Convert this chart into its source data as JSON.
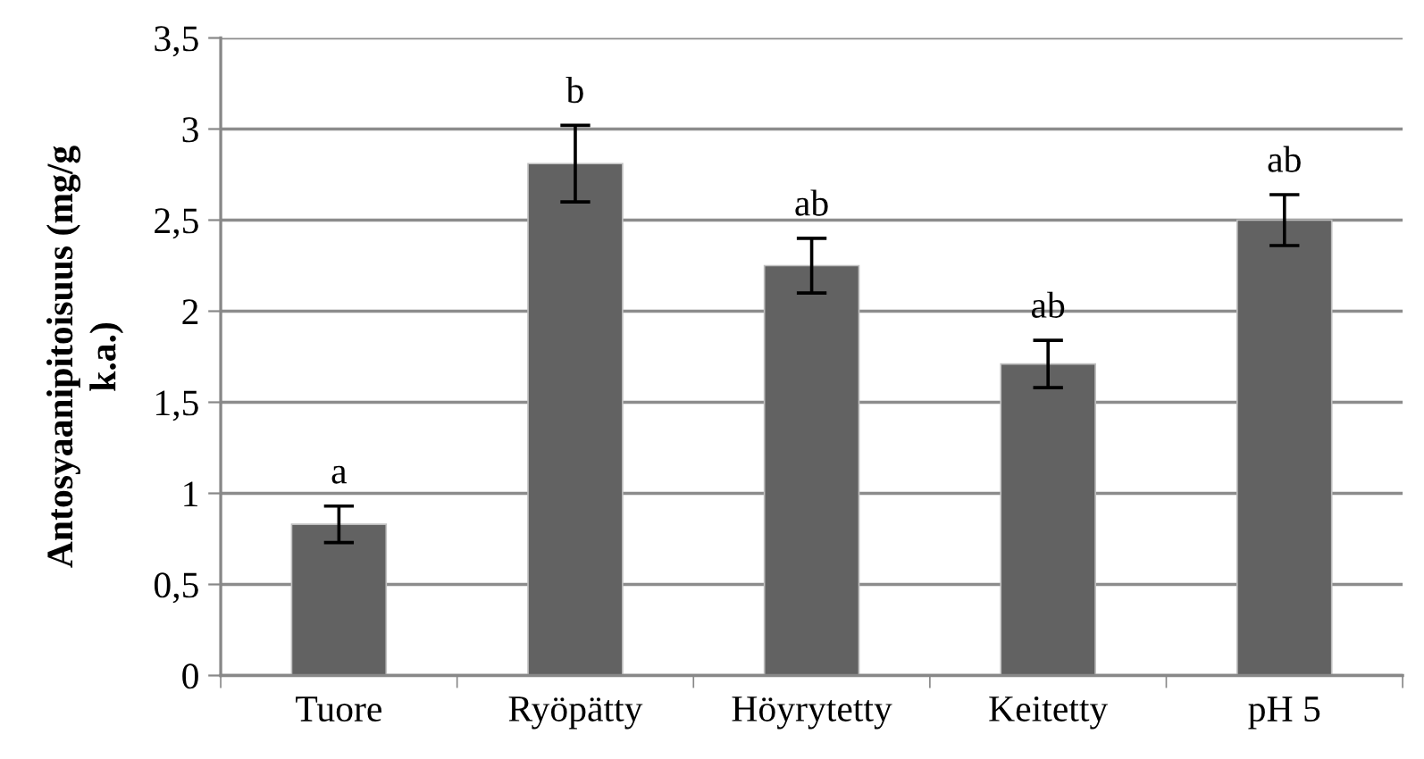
{
  "chart_data": {
    "type": "bar",
    "ylabel": "Antosyaanipitoisuus (mg/g\nk.a.)",
    "categories": [
      "Tuore",
      "Ryöpätty",
      "Höyrytetty",
      "Keitetty",
      "pH 5"
    ],
    "values": [
      0.83,
      2.81,
      2.25,
      1.71,
      2.5
    ],
    "errors": [
      0.1,
      0.21,
      0.15,
      0.13,
      0.14
    ],
    "color": "#626262",
    "ylim": [
      0,
      3.5
    ],
    "yticks": [
      0,
      {
        "value": 0.5,
        "label": "0,5"
      },
      1,
      {
        "value": 1.5,
        "label": "1,5"
      },
      2,
      {
        "value": 2.5,
        "label": "2,5"
      },
      3,
      {
        "value": 3.5,
        "label": "3,5"
      }
    ],
    "grid": "y",
    "legend": false,
    "annotations": [
      {
        "text": "a",
        "x": "Tuore",
        "y": 0.93
      },
      {
        "text": "b",
        "x": "Ryöpätty",
        "y": 3.02
      },
      {
        "text": "ab",
        "x": "Höyrytetty",
        "y": 2.4
      },
      {
        "text": "ab",
        "x": "Keitetty",
        "y": 1.84
      },
      {
        "text": "ab",
        "x": "pH 5",
        "y": 2.64
      }
    ]
  }
}
